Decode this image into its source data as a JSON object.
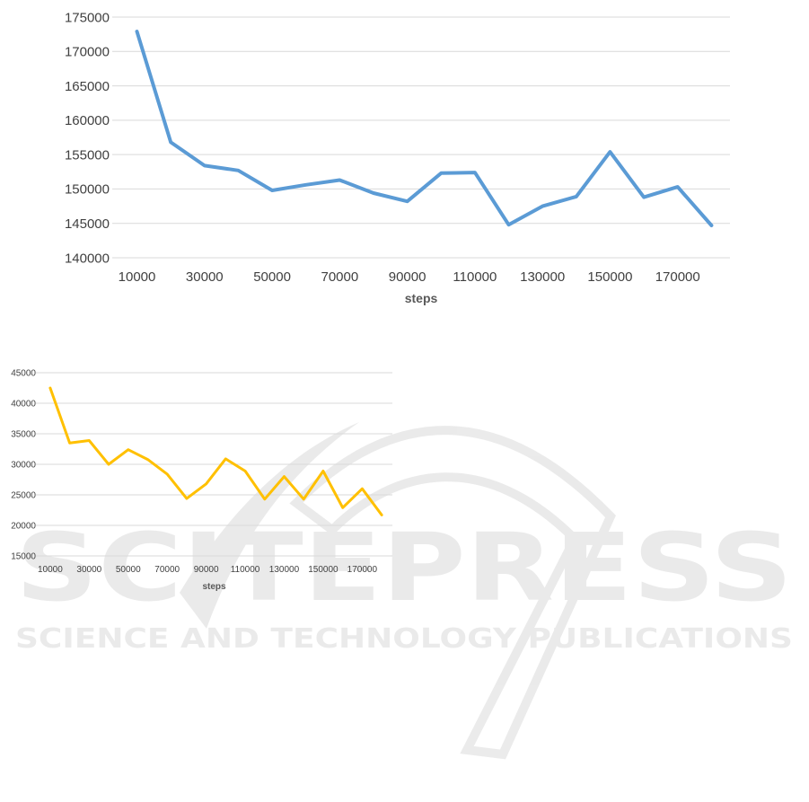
{
  "watermark": {
    "name": "SCITEPRESS",
    "tagline": "SCIENCE AND TECHNOLOGY PUBLICATIONS"
  },
  "chart_data": [
    {
      "type": "line",
      "xlabel": "steps",
      "ylabel": "",
      "title": "",
      "ylim": [
        140000,
        175000
      ],
      "yticks": [
        140000,
        145000,
        150000,
        155000,
        160000,
        165000,
        170000,
        175000
      ],
      "x_tick_labels": [
        "10000",
        "30000",
        "50000",
        "70000",
        "90000",
        "110000",
        "130000",
        "150000",
        "170000"
      ],
      "grid": true,
      "color": "#5B9BD5",
      "x": [
        10000,
        20000,
        30000,
        40000,
        50000,
        60000,
        70000,
        80000,
        90000,
        100000,
        110000,
        120000,
        130000,
        140000,
        150000,
        160000,
        170000,
        180000
      ],
      "values": [
        172900,
        156800,
        153400,
        152700,
        149800,
        150600,
        151300,
        149400,
        148200,
        152300,
        152400,
        144800,
        147500,
        148900,
        155400,
        148800,
        150300,
        144700
      ]
    },
    {
      "type": "line",
      "xlabel": "steps",
      "ylabel": "",
      "title": "",
      "ylim": [
        15000,
        45000
      ],
      "yticks": [
        15000,
        20000,
        25000,
        30000,
        35000,
        40000,
        45000
      ],
      "x_tick_labels": [
        "10000",
        "30000",
        "50000",
        "70000",
        "90000",
        "110000",
        "130000",
        "150000",
        "170000"
      ],
      "grid": true,
      "color": "#FFC000",
      "x": [
        10000,
        20000,
        30000,
        40000,
        50000,
        60000,
        70000,
        80000,
        90000,
        100000,
        110000,
        120000,
        130000,
        140000,
        150000,
        160000,
        170000,
        180000
      ],
      "values": [
        42500,
        33500,
        33900,
        30000,
        32400,
        30800,
        28400,
        24400,
        26800,
        30900,
        28900,
        24300,
        28000,
        24300,
        28900,
        22900,
        26000,
        21700
      ]
    }
  ]
}
